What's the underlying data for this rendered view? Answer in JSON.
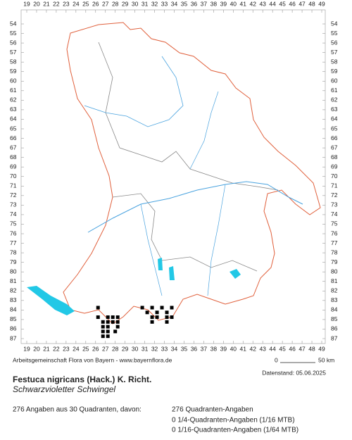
{
  "grid": {
    "columns": [
      19,
      20,
      21,
      22,
      23,
      24,
      25,
      26,
      27,
      28,
      29,
      30,
      31,
      32,
      33,
      34,
      35,
      36,
      37,
      38,
      39,
      40,
      41,
      42,
      43,
      44,
      45,
      46,
      47,
      48,
      49
    ],
    "rows": [
      54,
      55,
      56,
      57,
      58,
      59,
      60,
      61,
      62,
      63,
      64,
      65,
      66,
      67,
      68,
      69,
      70,
      71,
      72,
      73,
      74,
      75,
      76,
      77,
      78,
      79,
      80,
      81,
      82,
      83,
      84,
      85,
      86,
      87
    ]
  },
  "records": [
    [
      26.25,
      83.75
    ],
    [
      26.25,
      84.75
    ],
    [
      27.25,
      84.75
    ],
    [
      27.75,
      84.75
    ],
    [
      28.25,
      84.75
    ],
    [
      26.75,
      85.25
    ],
    [
      27.25,
      85.25
    ],
    [
      27.75,
      85.25
    ],
    [
      28.25,
      85.25
    ],
    [
      26.75,
      85.75
    ],
    [
      27.25,
      85.75
    ],
    [
      28.25,
      85.75
    ],
    [
      26.75,
      86.25
    ],
    [
      27.25,
      86.25
    ],
    [
      28.0,
      86.25
    ],
    [
      26.75,
      86.75
    ],
    [
      27.25,
      86.75
    ],
    [
      30.75,
      83.75
    ],
    [
      31.75,
      83.75
    ],
    [
      32.75,
      83.75
    ],
    [
      33.75,
      83.75
    ],
    [
      31.25,
      84.25
    ],
    [
      32.25,
      84.25
    ],
    [
      33.25,
      84.25
    ],
    [
      31.75,
      84.75
    ],
    [
      32.25,
      84.75
    ],
    [
      33.25,
      84.75
    ],
    [
      33.75,
      84.75
    ],
    [
      31.75,
      85.25
    ],
    [
      33.25,
      85.25
    ]
  ],
  "credit": "Arbeitsgemeinschaft Flora von Bayern - www.bayernflora.de",
  "scale": {
    "start": "0",
    "end": "50 km"
  },
  "date": "Datenstand: 05.06.2025",
  "species": {
    "name": "Festuca nigricans (Hack.) K. Richt.",
    "common_name": "Schwarzvioletter Schwingel"
  },
  "summary": {
    "total": "276 Angaben aus 30 Quadranten, davon:",
    "quadrant": "276 Quadranten-Angaben",
    "quarter": "0 1/4-Quadranten-Angaben (1/16 MTB)",
    "sixteenth": "0 1/16-Quadranten-Angaben (1/64 MTB)"
  }
}
